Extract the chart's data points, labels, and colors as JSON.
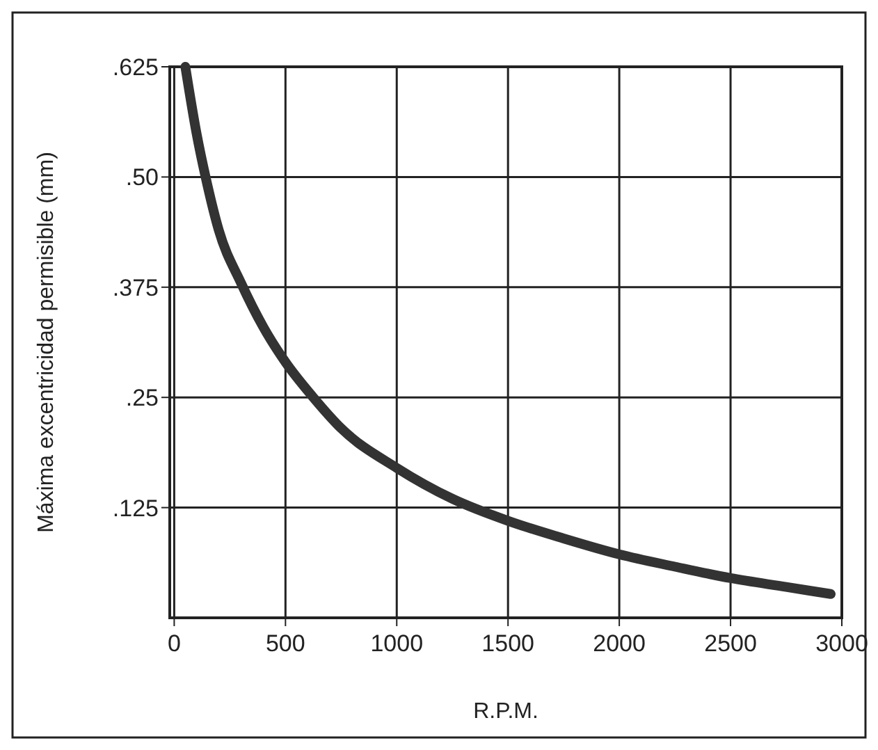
{
  "chart_data": {
    "type": "line",
    "xlabel": "R.P.M.",
    "ylabel": "Máxima excentricidad permisible (mm)",
    "xlim": [
      -20,
      3000
    ],
    "ylim": [
      0,
      0.625
    ],
    "xticks": [
      0,
      500,
      1000,
      1500,
      2000,
      2500,
      3000
    ],
    "yticks": [
      {
        "value": 0.125,
        "label": ".125"
      },
      {
        "value": 0.25,
        "label": ".25"
      },
      {
        "value": 0.375,
        "label": ".375"
      },
      {
        "value": 0.5,
        "label": ".50"
      },
      {
        "value": 0.625,
        "label": ".625"
      }
    ],
    "grid": true,
    "marker": "none",
    "line_style": "solid",
    "series": [
      {
        "color": "#333333",
        "x": [
          50,
          100,
          150,
          200,
          300,
          400,
          500,
          625,
          750,
          1000,
          1250,
          1500,
          1750,
          2000,
          2250,
          2500,
          2750,
          2950
        ],
        "values": [
          0.625,
          0.55,
          0.49,
          0.44,
          0.38,
          0.33,
          0.29,
          0.25,
          0.215,
          0.17,
          0.135,
          0.11,
          0.09,
          0.072,
          0.058,
          0.045,
          0.035,
          0.027
        ]
      }
    ]
  }
}
